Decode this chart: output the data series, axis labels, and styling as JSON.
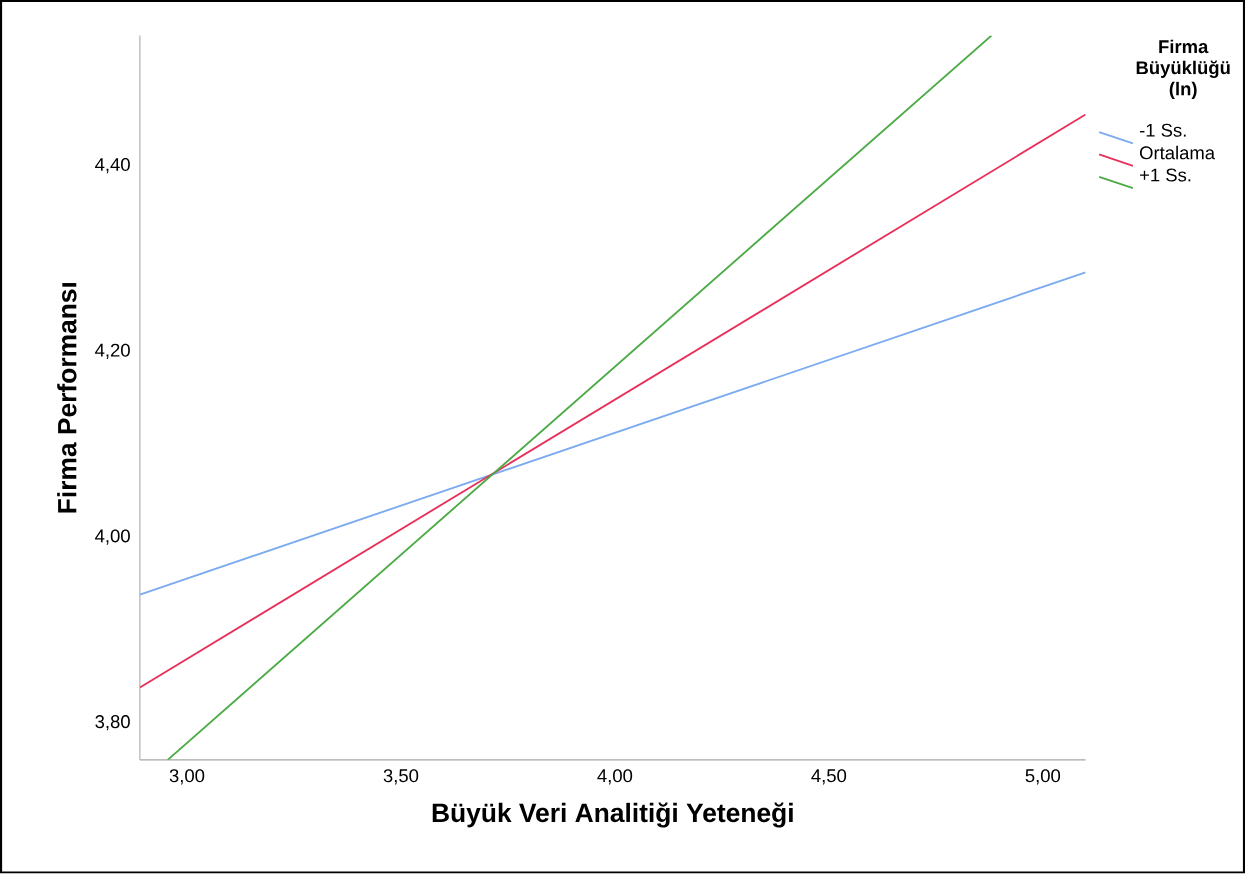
{
  "chart_data": {
    "type": "line",
    "xlabel": "Büyük Veri Analitiği Yeteneği",
    "ylabel": "Firma Performansı",
    "legend_title": "Firma Büyüklüğü (ln)",
    "legend": "top right",
    "series": [
      {
        "name": "-1 Ss.",
        "color": "#7aaaf0",
        "x": [
          2.89,
          5.1
        ],
        "values": [
          3.938,
          4.285
        ]
      },
      {
        "name": "Ortalama",
        "color": "#e8305a",
        "x": [
          2.89,
          5.1
        ],
        "values": [
          3.838,
          4.455
        ]
      },
      {
        "name": "+1 Ss.",
        "color": "#4caa44",
        "x": [
          2.955,
          4.88
        ],
        "values": [
          3.76,
          4.54
        ]
      }
    ],
    "xlim": [
      2.89,
      5.1
    ],
    "ylim": [
      3.76,
      4.54
    ],
    "xticks": [
      {
        "value": 3.0,
        "label": "3,00"
      },
      {
        "value": 3.5,
        "label": "3,50"
      },
      {
        "value": 4.0,
        "label": "4,00"
      },
      {
        "value": 4.5,
        "label": "4,50"
      },
      {
        "value": 5.0,
        "label": "5,00"
      }
    ],
    "yticks": [
      {
        "value": 3.8,
        "label": "3,80"
      },
      {
        "value": 4.0,
        "label": "4,00"
      },
      {
        "value": 4.2,
        "label": "4,20"
      },
      {
        "value": 4.4,
        "label": "4,40"
      }
    ],
    "grid": false,
    "marker": "none",
    "line_style": "solid"
  }
}
